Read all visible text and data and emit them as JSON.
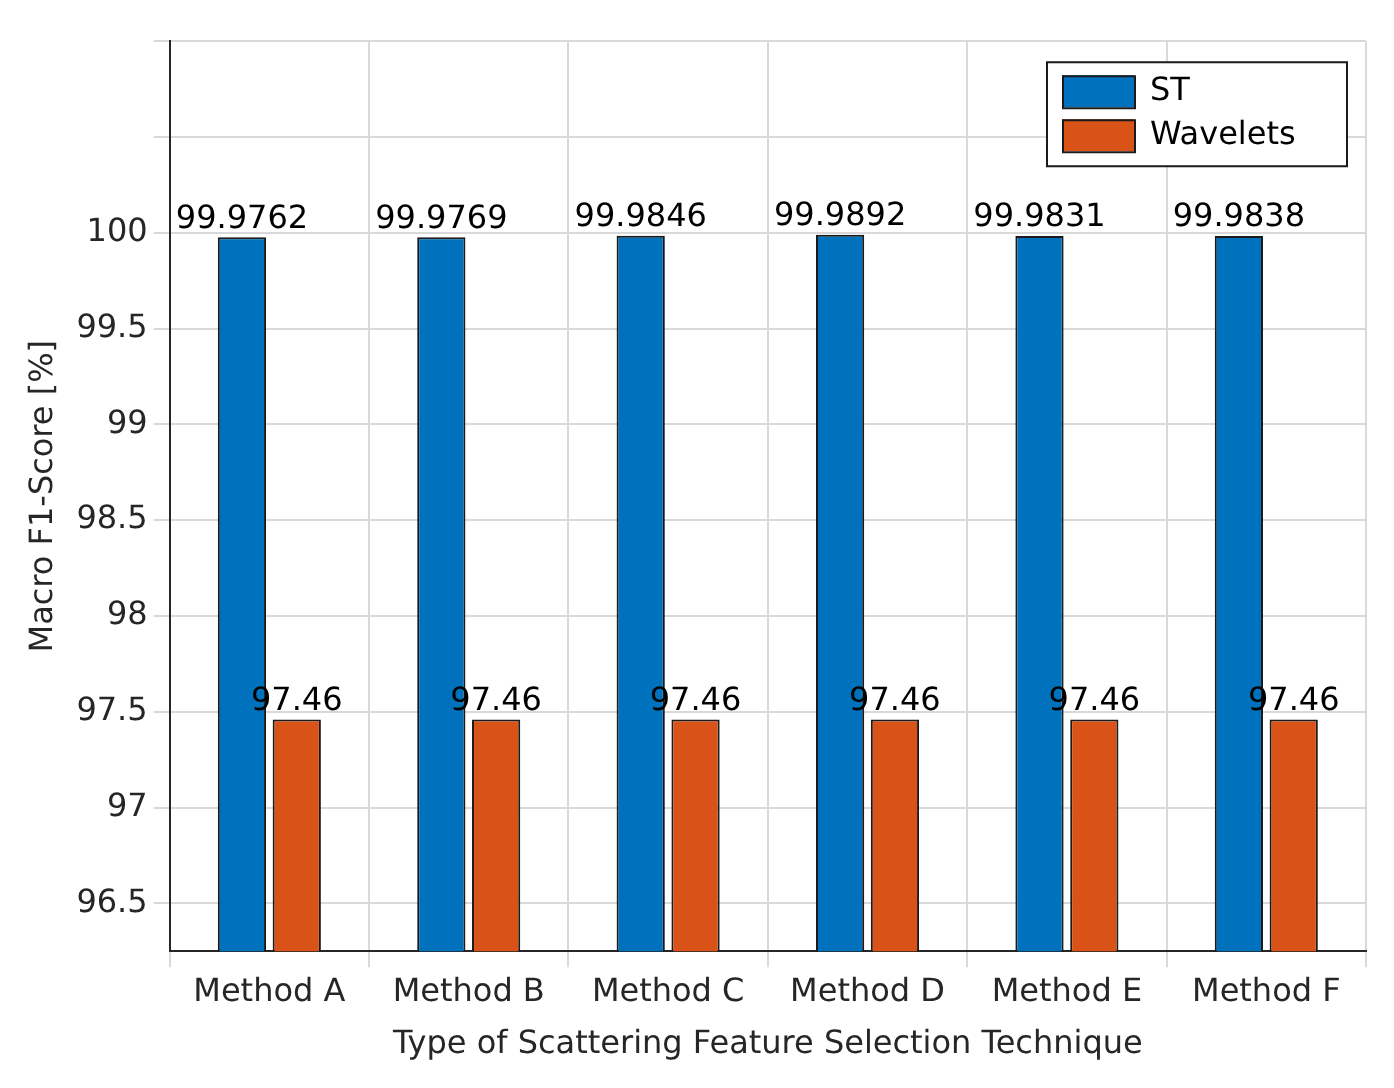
{
  "chart_data": {
    "type": "bar",
    "xlabel": "Type of Scattering Feature Selection Technique",
    "ylabel": "Macro F1-Score [%]",
    "categories": [
      "Method A",
      "Method B",
      "Method C",
      "Method D",
      "Method E",
      "Method F"
    ],
    "series": [
      {
        "name": "ST",
        "color": "#0072bd",
        "values": [
          99.9762,
          99.9769,
          99.9846,
          99.9892,
          99.9831,
          99.9838
        ]
      },
      {
        "name": "Wavelets",
        "color": "#d95319",
        "values": [
          97.46,
          97.46,
          97.46,
          97.46,
          97.46,
          97.46
        ]
      }
    ],
    "ylim": [
      96.25,
      101
    ],
    "yticks": [
      96.5,
      97,
      97.5,
      98,
      98.5,
      99,
      99.5,
      100,
      {
        "value": 100.5,
        "label": null
      },
      {
        "value": 101,
        "label": null
      }
    ],
    "grid": true,
    "legend": "top right",
    "data_labels": true
  }
}
